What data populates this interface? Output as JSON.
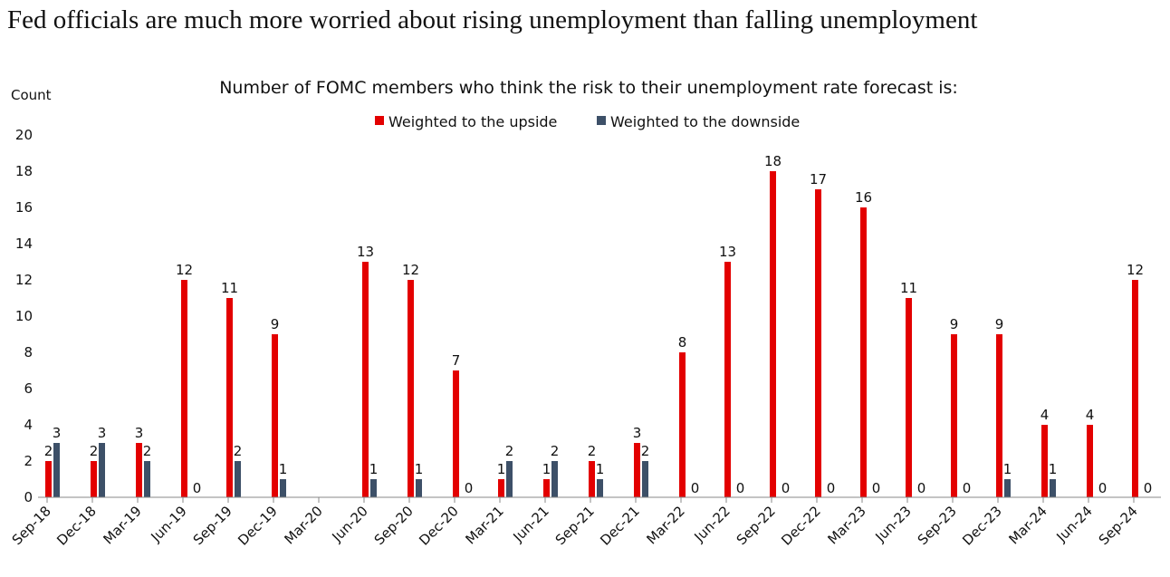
{
  "headline": "Fed officials are much more worried about rising unemployment than falling unemployment",
  "colors": {
    "upside": "#e30000",
    "downside": "#3d5068"
  },
  "chart_data": {
    "type": "bar",
    "title": "Number of FOMC members who think the risk to their unemployment rate forecast is:",
    "ylabel": "Count",
    "xlabel": "",
    "ylim": [
      0,
      20
    ],
    "yticks": [
      0,
      2,
      4,
      6,
      8,
      10,
      12,
      14,
      16,
      18,
      20
    ],
    "legend_position": "top-center",
    "categories": [
      "Sep-18",
      "Dec-18",
      "Mar-19",
      "Jun-19",
      "Sep-19",
      "Dec-19",
      "Mar-20",
      "Jun-20",
      "Sep-20",
      "Dec-20",
      "Mar-21",
      "Jun-21",
      "Sep-21",
      "Dec-21",
      "Mar-22",
      "Jun-22",
      "Sep-22",
      "Dec-22",
      "Mar-23",
      "Jun-23",
      "Sep-23",
      "Dec-23",
      "Mar-24",
      "Jun-24",
      "Sep-24"
    ],
    "series": [
      {
        "name": "Weighted to the upside",
        "values": [
          2,
          2,
          3,
          12,
          11,
          9,
          null,
          13,
          12,
          7,
          1,
          1,
          2,
          3,
          8,
          13,
          18,
          17,
          16,
          11,
          9,
          9,
          4,
          4,
          12
        ]
      },
      {
        "name": "Weighted to the downside",
        "values": [
          3,
          3,
          2,
          0,
          2,
          1,
          null,
          1,
          1,
          0,
          2,
          2,
          1,
          2,
          0,
          0,
          0,
          0,
          0,
          0,
          0,
          1,
          1,
          0,
          0
        ]
      }
    ]
  }
}
